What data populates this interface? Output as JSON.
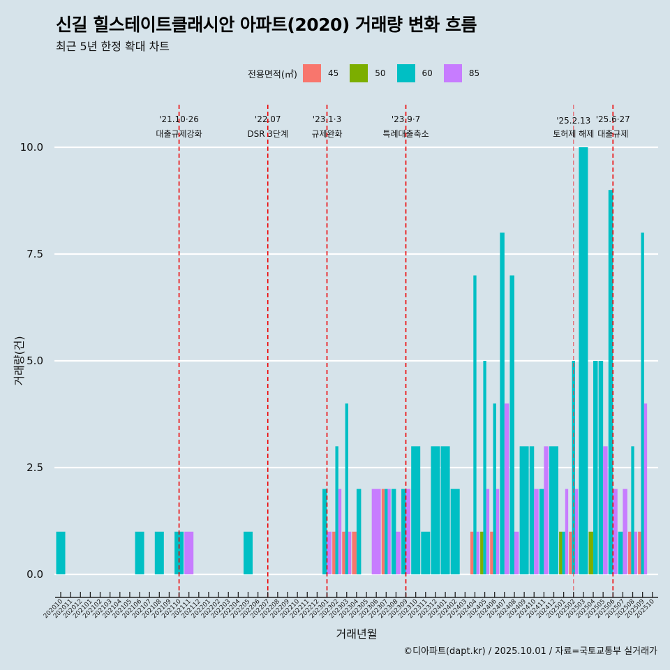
{
  "title": "신길 힐스테이트클래시안 아파트(2020) 거래량 변화 흐름",
  "subtitle": "최근 5년 한정 확대 차트",
  "caption": "©디아파트(dapt.kr) / 2025.10.01 / 자료=국토교통부 실거래가",
  "legend": {
    "title": "전용면적(㎡)",
    "items": [
      {
        "label": "45",
        "color": "#F8766D"
      },
      {
        "label": "50",
        "color": "#7CAE00"
      },
      {
        "label": "60",
        "color": "#00BFC4"
      },
      {
        "label": "85",
        "color": "#C77CFF"
      }
    ]
  },
  "chart_data": {
    "type": "bar",
    "title": "신길 힐스테이트클래시안 아파트(2020) 거래량 변화 흐름",
    "subtitle": "최근 5년 한정 확대 차트",
    "xlabel": "거래년월",
    "ylabel": "거래량(건)",
    "ylim": [
      0,
      10
    ],
    "yticks": [
      "0.0",
      "2.5",
      "5.0",
      "7.5",
      "10.0"
    ],
    "ytick_values": [
      0,
      2.5,
      5,
      7.5,
      10
    ],
    "grid": true,
    "legend_position": "top",
    "categories": [
      "202010",
      "202011",
      "202012",
      "202101",
      "202102",
      "202103",
      "202104",
      "202105",
      "202106",
      "202107",
      "202108",
      "202109",
      "202110",
      "202111",
      "202112",
      "202201",
      "202202",
      "202203",
      "202204",
      "202205",
      "202206",
      "202207",
      "202208",
      "202209",
      "202210",
      "202211",
      "202212",
      "202301",
      "202302",
      "202303",
      "202304",
      "202305",
      "202306",
      "202307",
      "202308",
      "202309",
      "202310",
      "202311",
      "202312",
      "202401",
      "202402",
      "202403",
      "202404",
      "202405",
      "202406",
      "202407",
      "202408",
      "202409",
      "202410",
      "202411",
      "202412",
      "202501",
      "202502",
      "202503",
      "202504",
      "202505",
      "202506",
      "202507",
      "202508",
      "202509",
      "202510"
    ],
    "series": [
      {
        "name": "45",
        "color": "#F8766D",
        "values": {
          "202302": 1,
          "202303": 1,
          "202304": 1,
          "202307": 2,
          "202404": 1,
          "202406": 1,
          "202502": 1,
          "202508": 1,
          "202509": 1
        }
      },
      {
        "name": "50",
        "color": "#7CAE00",
        "values": {
          "202405": 1,
          "202501": 1,
          "202504": 1
        }
      },
      {
        "name": "60",
        "color": "#00BFC4",
        "values": {
          "202010": 1,
          "202106": 1,
          "202108": 1,
          "202110": 1,
          "202205": 1,
          "202301": 2,
          "202302": 3,
          "202303": 4,
          "202304": 2,
          "202307": 2,
          "202308": 2,
          "202309": 2,
          "202310": 3,
          "202311": 1,
          "202312": 3,
          "202401": 3,
          "202402": 2,
          "202404": 7,
          "202405": 5,
          "202406": 4,
          "202407": 8,
          "202408": 7,
          "202409": 3,
          "202410": 3,
          "202411": 2,
          "202412": 3,
          "202501": 1,
          "202502": 5,
          "202503": 10,
          "202504": 5,
          "202505": 5,
          "202506": 9,
          "202507": 1,
          "202508": 3,
          "202509": 8
        }
      },
      {
        "name": "85",
        "color": "#C77CFF",
        "values": {
          "202111": 1,
          "202301": 1,
          "202302": 2,
          "202303": 1,
          "202306": 2,
          "202307": 2,
          "202308": 1,
          "202309": 2,
          "202404": 1,
          "202405": 2,
          "202406": 2,
          "202407": 4,
          "202408": 1,
          "202410": 2,
          "202411": 3,
          "202501": 2,
          "202502": 2,
          "202505": 3,
          "202506": 2,
          "202507": 2,
          "202508": 1,
          "202509": 4
        }
      }
    ],
    "annotations": [
      {
        "month": "202110",
        "date": "'21.10·26",
        "label": "대출규제강화",
        "style": "bold"
      },
      {
        "month": "202207",
        "date": "'22.07",
        "label": "DSR 3단계",
        "style": "bold"
      },
      {
        "month": "202301",
        "date": "'23.1·3",
        "label": "규제완화",
        "style": "bold"
      },
      {
        "month": "202309",
        "date": "'23.9·7",
        "label": "특례대출축소",
        "style": "bold"
      },
      {
        "month": "202502",
        "date": "'25.2.13",
        "label": "토허제 해제",
        "style": "light"
      },
      {
        "month": "202506",
        "date": "'25.6·27",
        "label": "대출규제",
        "style": "bold"
      }
    ]
  }
}
